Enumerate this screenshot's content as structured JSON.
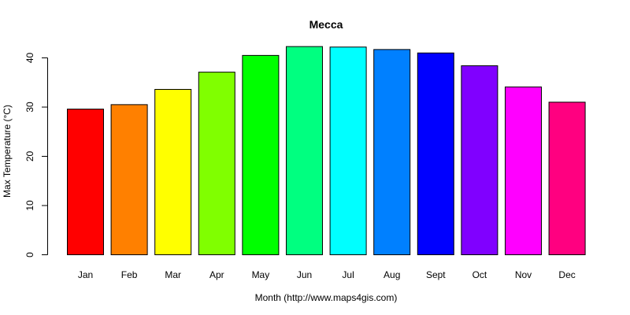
{
  "chart_data": {
    "type": "bar",
    "title": "Mecca",
    "xlabel": "Month (http://www.maps4gis.com)",
    "ylabel": "Max Temperature (°C)",
    "categories": [
      "Jan",
      "Feb",
      "Mar",
      "Apr",
      "May",
      "Jun",
      "Jul",
      "Aug",
      "Sept",
      "Oct",
      "Nov",
      "Dec"
    ],
    "values": [
      29.6,
      30.5,
      33.6,
      37.1,
      40.5,
      42.3,
      42.2,
      41.7,
      41.0,
      38.4,
      34.1,
      31.0
    ],
    "bar_colors": [
      "#FF0000",
      "#FF8000",
      "#FFFF00",
      "#80FF00",
      "#00FF00",
      "#00FF80",
      "#00FFFF",
      "#0080FF",
      "#0000FF",
      "#8000FF",
      "#FF00FF",
      "#FF0080"
    ],
    "y_ticks": [
      0,
      10,
      20,
      30,
      40
    ],
    "ylim": [
      0,
      43
    ],
    "grid": false,
    "legend": "none"
  }
}
